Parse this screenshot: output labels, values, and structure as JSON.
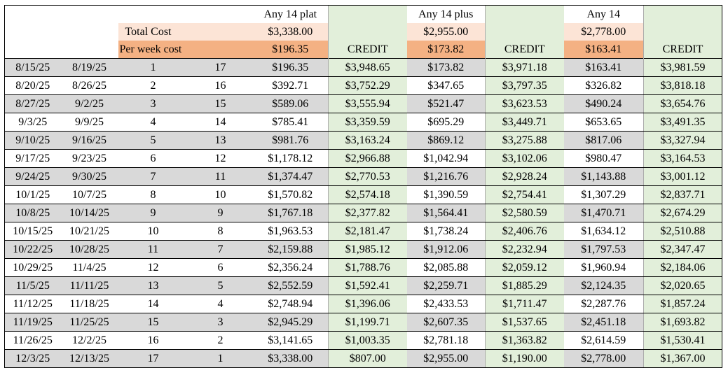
{
  "header": {
    "plans": [
      {
        "name": "Any 14 plat",
        "total_cost": "$3,338.00",
        "per_week": "$196.35",
        "credit_label": "CREDIT"
      },
      {
        "name": "Any 14 plus",
        "total_cost": "$2,955.00",
        "per_week": "$173.82",
        "credit_label": "CREDIT"
      },
      {
        "name": "Any 14",
        "total_cost": "$2,778.00",
        "per_week": "$163.41",
        "credit_label": "CREDIT"
      }
    ],
    "total_cost_label": "Total Cost",
    "per_week_label": "Per week cost"
  },
  "rows": [
    {
      "start": "8/15/25",
      "end": "8/19/25",
      "week": "1",
      "remaining": "17",
      "plat_cost": "$196.35",
      "plat_credit": "$3,948.65",
      "plus_cost": "$173.82",
      "plus_credit": "$3,971.18",
      "any_cost": "$163.41",
      "any_credit": "$3,981.59"
    },
    {
      "start": "8/20/25",
      "end": "8/26/25",
      "week": "2",
      "remaining": "16",
      "plat_cost": "$392.71",
      "plat_credit": "$3,752.29",
      "plus_cost": "$347.65",
      "plus_credit": "$3,797.35",
      "any_cost": "$326.82",
      "any_credit": "$3,818.18"
    },
    {
      "start": "8/27/25",
      "end": "9/2/25",
      "week": "3",
      "remaining": "15",
      "plat_cost": "$589.06",
      "plat_credit": "$3,555.94",
      "plus_cost": "$521.47",
      "plus_credit": "$3,623.53",
      "any_cost": "$490.24",
      "any_credit": "$3,654.76"
    },
    {
      "start": "9/3/25",
      "end": "9/9/25",
      "week": "4",
      "remaining": "14",
      "plat_cost": "$785.41",
      "plat_credit": "$3,359.59",
      "plus_cost": "$695.29",
      "plus_credit": "$3,449.71",
      "any_cost": "$653.65",
      "any_credit": "$3,491.35"
    },
    {
      "start": "9/10/25",
      "end": "9/16/25",
      "week": "5",
      "remaining": "13",
      "plat_cost": "$981.76",
      "plat_credit": "$3,163.24",
      "plus_cost": "$869.12",
      "plus_credit": "$3,275.88",
      "any_cost": "$817.06",
      "any_credit": "$3,327.94"
    },
    {
      "start": "9/17/25",
      "end": "9/23/25",
      "week": "6",
      "remaining": "12",
      "plat_cost": "$1,178.12",
      "plat_credit": "$2,966.88",
      "plus_cost": "$1,042.94",
      "plus_credit": "$3,102.06",
      "any_cost": "$980.47",
      "any_credit": "$3,164.53"
    },
    {
      "start": "9/24/25",
      "end": "9/30/25",
      "week": "7",
      "remaining": "11",
      "plat_cost": "$1,374.47",
      "plat_credit": "$2,770.53",
      "plus_cost": "$1,216.76",
      "plus_credit": "$2,928.24",
      "any_cost": "$1,143.88",
      "any_credit": "$3,001.12"
    },
    {
      "start": "10/1/25",
      "end": "10/7/25",
      "week": "8",
      "remaining": "10",
      "plat_cost": "$1,570.82",
      "plat_credit": "$2,574.18",
      "plus_cost": "$1,390.59",
      "plus_credit": "$2,754.41",
      "any_cost": "$1,307.29",
      "any_credit": "$2,837.71"
    },
    {
      "start": "10/8/25",
      "end": "10/14/25",
      "week": "9",
      "remaining": "9",
      "plat_cost": "$1,767.18",
      "plat_credit": "$2,377.82",
      "plus_cost": "$1,564.41",
      "plus_credit": "$2,580.59",
      "any_cost": "$1,470.71",
      "any_credit": "$2,674.29"
    },
    {
      "start": "10/15/25",
      "end": "10/21/25",
      "week": "10",
      "remaining": "8",
      "plat_cost": "$1,963.53",
      "plat_credit": "$2,181.47",
      "plus_cost": "$1,738.24",
      "plus_credit": "$2,406.76",
      "any_cost": "$1,634.12",
      "any_credit": "$2,510.88"
    },
    {
      "start": "10/22/25",
      "end": "10/28/25",
      "week": "11",
      "remaining": "7",
      "plat_cost": "$2,159.88",
      "plat_credit": "$1,985.12",
      "plus_cost": "$1,912.06",
      "plus_credit": "$2,232.94",
      "any_cost": "$1,797.53",
      "any_credit": "$2,347.47"
    },
    {
      "start": "10/29/25",
      "end": "11/4/25",
      "week": "12",
      "remaining": "6",
      "plat_cost": "$2,356.24",
      "plat_credit": "$1,788.76",
      "plus_cost": "$2,085.88",
      "plus_credit": "$2,059.12",
      "any_cost": "$1,960.94",
      "any_credit": "$2,184.06"
    },
    {
      "start": "11/5/25",
      "end": "11/11/25",
      "week": "13",
      "remaining": "5",
      "plat_cost": "$2,552.59",
      "plat_credit": "$1,592.41",
      "plus_cost": "$2,259.71",
      "plus_credit": "$1,885.29",
      "any_cost": "$2,124.35",
      "any_credit": "$2,020.65"
    },
    {
      "start": "11/12/25",
      "end": "11/18/25",
      "week": "14",
      "remaining": "4",
      "plat_cost": "$2,748.94",
      "plat_credit": "$1,396.06",
      "plus_cost": "$2,433.53",
      "plus_credit": "$1,711.47",
      "any_cost": "$2,287.76",
      "any_credit": "$1,857.24"
    },
    {
      "start": "11/19/25",
      "end": "11/25/25",
      "week": "15",
      "remaining": "3",
      "plat_cost": "$2,945.29",
      "plat_credit": "$1,199.71",
      "plus_cost": "$2,607.35",
      "plus_credit": "$1,537.65",
      "any_cost": "$2,451.18",
      "any_credit": "$1,693.82"
    },
    {
      "start": "11/26/25",
      "end": "12/2/25",
      "week": "16",
      "remaining": "2",
      "plat_cost": "$3,141.65",
      "plat_credit": "$1,003.35",
      "plus_cost": "$2,781.18",
      "plus_credit": "$1,363.82",
      "any_cost": "$2,614.59",
      "any_credit": "$1,530.41"
    },
    {
      "start": "12/3/25",
      "end": "12/13/25",
      "week": "17",
      "remaining": "1",
      "plat_cost": "$3,338.00",
      "plat_credit": "$807.00",
      "plus_cost": "$2,955.00",
      "plus_credit": "$1,190.00",
      "any_cost": "$2,778.00",
      "any_credit": "$1,367.00"
    }
  ],
  "colors": {
    "credit_bg": "#e2efda",
    "cost_light_bg": "#fce4d6",
    "cost_dark_bg": "#f4b183",
    "row_shade_bg": "#d9d9d9"
  }
}
